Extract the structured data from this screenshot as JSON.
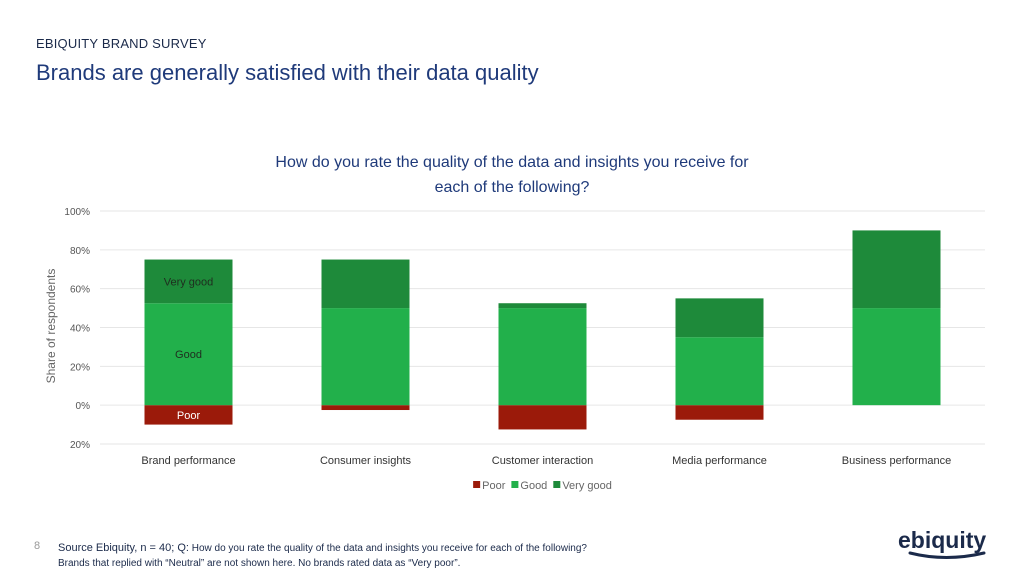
{
  "header": {
    "kicker": "EBIQUITY BRAND SURVEY",
    "title": "Brands are generally satisfied with their data quality"
  },
  "chart_data": {
    "type": "bar",
    "stacked": true,
    "title_lines": [
      "How do you rate the quality of the data and insights you receive for",
      "each of the following?"
    ],
    "ylabel": "Share of respondents",
    "xlabel": "",
    "ylim": [
      -20,
      100
    ],
    "yticks": [
      100,
      80,
      60,
      40,
      20,
      0,
      -20
    ],
    "ytick_labels": [
      "100%",
      "80%",
      "60%",
      "40%",
      "20%",
      "0%",
      "20%"
    ],
    "grid": true,
    "legend_position": "bottom",
    "categories": [
      "Brand performance",
      "Consumer insights",
      "Customer interaction",
      "Media performance",
      "Business performance"
    ],
    "series": [
      {
        "name": "Poor",
        "color": "#9b1a0a",
        "values": [
          -10,
          -2.5,
          -12.5,
          -7.5,
          0
        ]
      },
      {
        "name": "Good",
        "color": "#22b04b",
        "values": [
          52.5,
          50,
          50,
          35,
          50
        ]
      },
      {
        "name": "Very good",
        "color": "#1e8a3a",
        "values": [
          22.5,
          25,
          2.5,
          20,
          40
        ]
      }
    ],
    "bar_labels": [
      {
        "category_index": 0,
        "series_index": 2,
        "text": "Very good"
      },
      {
        "category_index": 0,
        "series_index": 1,
        "text": "Good"
      },
      {
        "category_index": 0,
        "series_index": 0,
        "text": "Poor"
      }
    ]
  },
  "footer": {
    "page_number": "8",
    "source_lead": "Source Ebiquity, n = 40; Q:",
    "source_rest": " How do you rate the quality of the data and insights you receive for each of the following?",
    "note": "Brands that replied with “Neutral” are not shown here. No brands rated data as “Very poor”.",
    "logo_text": "ebiquity"
  },
  "colors": {
    "title": "#1f3a7a",
    "grid": "#e6e6e6",
    "tick": "#555555"
  }
}
